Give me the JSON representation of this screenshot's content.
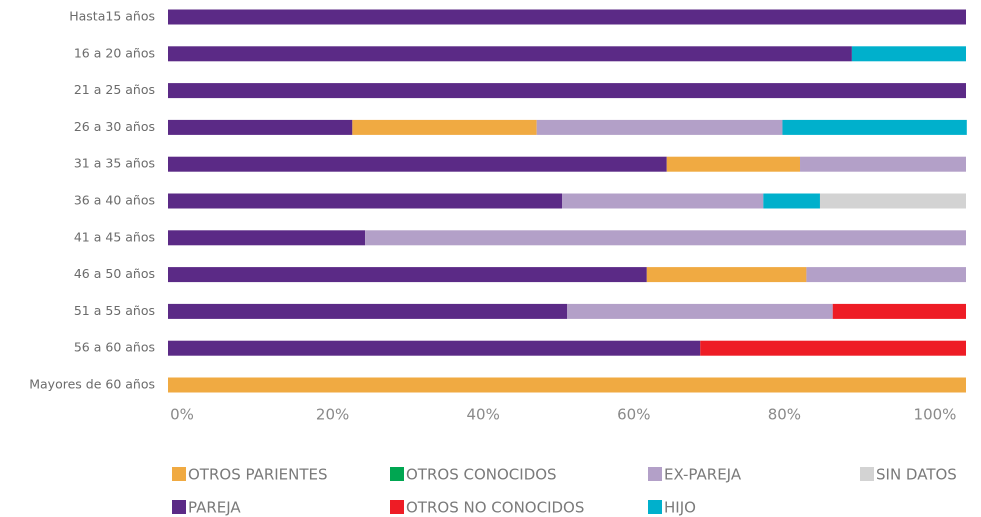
{
  "chart_data": {
    "type": "stacked_barh",
    "categories": [
      "Hasta15 años",
      "16 a 20 años",
      "21 a 25 años",
      "26 a 30 años",
      "31 a 35 años",
      "36 a 40 años",
      "41 a 45 años",
      "46 a 50 años",
      "51 a 55 años",
      "56 a 60 años",
      "Mayores de 60 años"
    ],
    "series": [
      {
        "name": "PAREJA",
        "color": "#5b2a86",
        "values": [
          100,
          85.7,
          100,
          23.1,
          62.5,
          49.4,
          24.7,
          60,
          50,
          66.7,
          0
        ]
      },
      {
        "name": "OTROS PARIENTES",
        "color": "#f0aa42",
        "values": [
          0,
          0,
          0,
          23.1,
          16.7,
          0,
          0,
          20,
          0,
          0,
          100
        ]
      },
      {
        "name": "EX-PAREJA",
        "color": "#b3a0c8",
        "values": [
          0,
          0,
          0,
          30.8,
          20.8,
          25.2,
          75.3,
          20,
          33.3,
          0,
          0
        ]
      },
      {
        "name": "OTROS NO CONOCIDOS",
        "color": "#ee1c25",
        "values": [
          0,
          0,
          0,
          0,
          0,
          0,
          0,
          0,
          16.7,
          33.3,
          0
        ]
      },
      {
        "name": "HIJO",
        "color": "#00b0cc",
        "values": [
          0,
          14.3,
          0,
          23.1,
          0,
          7.1,
          0,
          0,
          0,
          0,
          0
        ]
      },
      {
        "name": "SIN DATOS",
        "color": "#d3d3d3",
        "values": [
          0,
          0,
          0,
          0,
          0,
          18.3,
          0,
          0,
          0,
          0,
          0
        ]
      },
      {
        "name": "OTROS CONOCIDOS",
        "color": "#00a651",
        "values": [
          0,
          0,
          0,
          0,
          0,
          0,
          0,
          0,
          0,
          0,
          0
        ]
      }
    ],
    "xlim": [
      0,
      100
    ],
    "xticks": [
      {
        "value": 0,
        "label": "0%"
      },
      {
        "value": 20,
        "label": "20%"
      },
      {
        "value": 40,
        "label": "40%"
      },
      {
        "value": 60,
        "label": "60%"
      },
      {
        "value": 80,
        "label": "80%"
      },
      {
        "value": 100,
        "label": "100%"
      }
    ]
  }
}
